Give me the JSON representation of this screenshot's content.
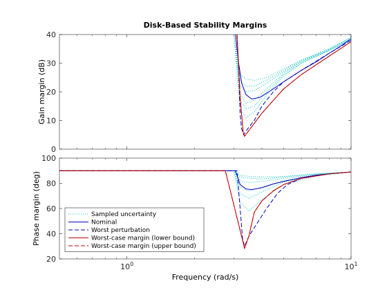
{
  "chart_data": [
    {
      "type": "line",
      "title": "Disk-Based Stability Margins",
      "xlabel": "",
      "ylabel": "Gain margin (dB)",
      "xscale": "log",
      "xlim": [
        0.5,
        10
      ],
      "ylim": [
        0,
        40
      ],
      "yticks": [
        0,
        10,
        20,
        30,
        40
      ],
      "xticks": [
        1,
        10
      ],
      "xticklabels": [
        "",
        ""
      ],
      "grid": false,
      "series": [
        {
          "name": "Sampled uncertainty",
          "color": "#00bfbf",
          "style": "dotted",
          "samples": [
            {
              "x": [
                3.0,
                3.2,
                3.4,
                3.7,
                4.2,
                5.0,
                6.0,
                8.0,
                10.0
              ],
              "y": [
                40,
                26,
                24.5,
                24,
                25,
                28,
                31,
                35,
                39
              ]
            },
            {
              "x": [
                3.0,
                3.2,
                3.4,
                3.7,
                4.2,
                5.0,
                6.0,
                8.0,
                10.0
              ],
              "y": [
                40,
                24,
                22,
                22,
                24,
                27.5,
                31,
                35,
                39
              ]
            },
            {
              "x": [
                3.0,
                3.2,
                3.4,
                3.7,
                4.2,
                5.0,
                6.0,
                8.0,
                10.0
              ],
              "y": [
                40,
                22,
                20,
                20.5,
                23,
                27,
                30.5,
                35,
                39
              ]
            },
            {
              "x": [
                3.0,
                3.2,
                3.4,
                3.7,
                4.2,
                5.0,
                6.0,
                8.0,
                10.0
              ],
              "y": [
                40,
                19,
                16,
                17,
                21,
                26.5,
                30.5,
                34.5,
                38.5
              ]
            },
            {
              "x": [
                3.0,
                3.2,
                3.4,
                3.7,
                4.2,
                5.0,
                6.0,
                8.0,
                10.0
              ],
              "y": [
                40,
                17,
                14,
                15,
                20,
                26,
                30,
                34.5,
                38.5
              ]
            },
            {
              "x": [
                3.0,
                3.2,
                3.4,
                3.7,
                4.2,
                5.0,
                6.0,
                8.0,
                10.0
              ],
              "y": [
                40,
                14,
                11,
                13,
                19,
                25.5,
                30,
                34.5,
                38.5
              ]
            }
          ]
        },
        {
          "name": "Nominal",
          "color": "#0000bf",
          "style": "solid",
          "x": [
            3.05,
            3.15,
            3.25,
            3.4,
            3.6,
            3.9,
            4.3,
            5.0,
            6.0,
            7.0,
            8.0,
            9.0,
            10.0
          ],
          "y": [
            40,
            30,
            23,
            19,
            17.5,
            18,
            20,
            23.5,
            27.5,
            30.5,
            33.5,
            36,
            38.5
          ]
        },
        {
          "name": "Worst perturbation",
          "color": "#0000bf",
          "style": "dashed",
          "x": [
            3.1,
            3.15,
            3.2,
            3.25,
            3.32,
            3.45,
            3.7,
            4.0,
            4.5,
            5.0,
            6.0,
            8.0,
            10.0
          ],
          "y": [
            40,
            28,
            12,
            7,
            5,
            7,
            10,
            15,
            20,
            23.5,
            27.5,
            33.5,
            38
          ]
        },
        {
          "name": "Worst-case margin (lower bound)",
          "color": "#bf0000",
          "style": "solid",
          "x": [
            3.1,
            3.2,
            3.3,
            3.35,
            3.5,
            3.7,
            4.0,
            4.5,
            5.0,
            6.0,
            8.0,
            10.0
          ],
          "y": [
            40,
            18,
            6,
            4.5,
            6.5,
            9,
            12.5,
            17,
            21,
            26,
            32.5,
            37.5
          ]
        },
        {
          "name": "Worst-case margin (upper bound)",
          "color": "#bf0000",
          "style": "dashed",
          "x": [
            3.1,
            3.2,
            3.3,
            3.35,
            3.5,
            3.7,
            4.0,
            4.5,
            5.0,
            6.0,
            8.0,
            10.0
          ],
          "y": [
            40,
            18,
            6,
            4.5,
            6.5,
            9,
            12.5,
            17,
            21,
            26,
            32.5,
            37.5
          ]
        }
      ]
    },
    {
      "type": "line",
      "title": "",
      "xlabel": "Frequency (rad/s)",
      "ylabel": "Phase margin (deg)",
      "xscale": "log",
      "xlim": [
        0.5,
        10
      ],
      "ylim": [
        20,
        100
      ],
      "yticks": [
        20,
        40,
        60,
        80,
        100
      ],
      "xticks": [
        1,
        10
      ],
      "xticklabels": [
        "10^0",
        "10^1"
      ],
      "grid": false,
      "legend": "bottom-left",
      "series": [
        {
          "name": "Sampled uncertainty",
          "color": "#00bfbf",
          "style": "dotted",
          "samples": [
            {
              "x": [
                0.5,
                3.0,
                3.2,
                3.5,
                4.0,
                5.0,
                7.0,
                10.0
              ],
              "y": [
                90,
                90,
                86.5,
                85.5,
                85,
                85.5,
                87.5,
                89
              ]
            },
            {
              "x": [
                0.5,
                3.0,
                3.2,
                3.5,
                4.0,
                5.0,
                7.0,
                10.0
              ],
              "y": [
                90,
                90,
                85,
                84,
                83.5,
                85,
                87.5,
                89
              ]
            },
            {
              "x": [
                0.5,
                3.0,
                3.2,
                3.5,
                4.0,
                5.0,
                7.0,
                10.0
              ],
              "y": [
                90,
                90,
                82,
                80.5,
                81.5,
                84,
                87,
                89
              ]
            },
            {
              "x": [
                0.5,
                3.0,
                3.2,
                3.5,
                4.0,
                5.0,
                7.0,
                10.0
              ],
              "y": [
                90,
                90,
                77,
                74,
                77,
                82,
                86.5,
                89
              ]
            },
            {
              "x": [
                0.5,
                3.0,
                3.2,
                3.5,
                4.0,
                5.0,
                7.0,
                10.0
              ],
              "y": [
                90,
                90,
                72,
                68,
                73,
                81,
                86.5,
                89
              ]
            },
            {
              "x": [
                0.5,
                3.0,
                3.2,
                3.5,
                4.0,
                5.0,
                7.0,
                10.0
              ],
              "y": [
                90,
                90,
                65,
                58,
                67,
                79,
                86,
                89
              ]
            }
          ]
        },
        {
          "name": "Nominal",
          "color": "#0000bf",
          "style": "solid",
          "x": [
            0.5,
            3.05,
            3.2,
            3.4,
            3.6,
            4.0,
            4.5,
            5.0,
            6.0,
            7.0,
            8.0,
            10.0
          ],
          "y": [
            90,
            90,
            79,
            75.5,
            75,
            76.5,
            79.5,
            81.5,
            84.5,
            86.5,
            87.5,
            89
          ]
        },
        {
          "name": "Worst perturbation",
          "color": "#0000bf",
          "style": "dashed",
          "x": [
            0.5,
            3.1,
            3.2,
            3.28,
            3.35,
            3.5,
            3.8,
            4.2,
            4.7,
            5.2,
            6.0,
            8.0,
            10.0
          ],
          "y": [
            90,
            90,
            60,
            36,
            30,
            38,
            48,
            60,
            72,
            79,
            84,
            87.5,
            89
          ]
        },
        {
          "name": "Worst-case margin (lower bound)",
          "color": "#bf0000",
          "style": "solid",
          "x": [
            0.5,
            2.75,
            3.35,
            3.5,
            3.7,
            4.0,
            4.5,
            5.0,
            6.0,
            8.0,
            10.0
          ],
          "y": [
            90,
            90,
            28.5,
            38,
            57,
            66,
            74,
            79,
            84,
            87.5,
            89
          ]
        },
        {
          "name": "Worst-case margin (upper bound)",
          "color": "#bf0000",
          "style": "dashed",
          "x": [
            0.5,
            2.75,
            3.35,
            3.5,
            3.7,
            4.0,
            4.5,
            5.0,
            6.0,
            8.0,
            10.0
          ],
          "y": [
            90,
            90,
            28.5,
            38,
            57,
            66,
            74,
            79,
            84,
            87.5,
            89
          ]
        }
      ]
    }
  ]
}
